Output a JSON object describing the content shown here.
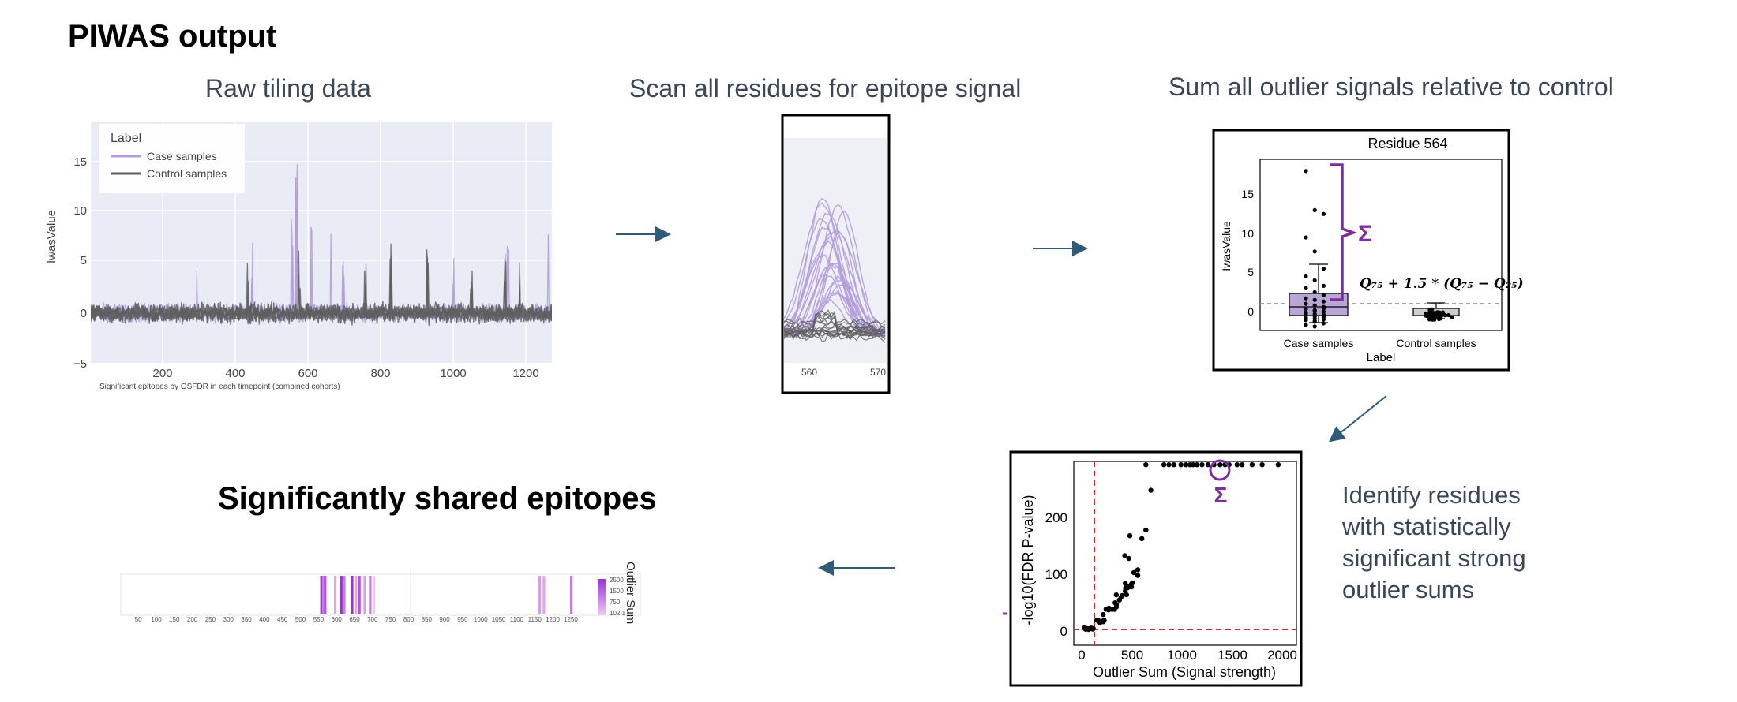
{
  "page": {
    "title": "PIWAS output",
    "panels": {
      "raw": "Raw tiling data",
      "scan": "Scan all residues for epitope signal",
      "sum": "Sum all outlier signals relative to control",
      "identify": [
        "Identify residues",
        "with statistically",
        "significant strong",
        "outlier sums"
      ],
      "shared": "Significantly shared epitopes"
    }
  },
  "raw_chart": {
    "ylabel": "IwasValue",
    "yticks": [
      "15",
      "10",
      "5",
      "0",
      "−5"
    ],
    "xticks": [
      "200",
      "400",
      "600",
      "800",
      "1000",
      "1200"
    ],
    "legend_title": "Label",
    "legend": [
      "Case samples",
      "Control samples"
    ],
    "caption": "Significant epitopes by OSFDR in each timepoint (combined cohorts)",
    "colors": {
      "case": "#b39ddb",
      "control": "#5f5f5f",
      "plot_bg": "#e9ecf4"
    }
  },
  "scan_chart": {
    "xticks": [
      "560",
      "570"
    ]
  },
  "box_chart": {
    "title": "Residue 564",
    "ylabel": "IwasValue",
    "xlabel": "Label",
    "yticks": [
      "15",
      "10",
      "5",
      "0"
    ],
    "categories": [
      "Case samples",
      "Control samples"
    ],
    "sigma": "Σ",
    "formula": "Q₇₅ + 1.5 * (Q₇₅ − Q₂₅)",
    "colors": {
      "brace": "#7b2f9e",
      "box": "#b7a6d6"
    }
  },
  "volcano_chart": {
    "ylabel": "-log10(FDR P-value)",
    "xlabel": "Outlier Sum (Signal strength)",
    "yticks": [
      "200",
      "100",
      "0"
    ],
    "xticks": [
      "0",
      "500",
      "1000",
      "1500",
      "2000"
    ],
    "sigma": "Σ"
  },
  "heat_chart": {
    "colorbar_label": "Outlier Sum",
    "colorbar_ticks": [
      "2500",
      "1500",
      "750",
      "102.1"
    ],
    "xticks": [
      "50",
      "100",
      "150",
      "200",
      "250",
      "300",
      "350",
      "400",
      "450",
      "500",
      "550",
      "600",
      "650",
      "700",
      "750",
      "800",
      "850",
      "900",
      "950",
      "1000",
      "1050",
      "1100",
      "1150",
      "1200",
      "1250"
    ],
    "colors": {
      "high": "#9b30d9",
      "low": "#f0c8f8"
    }
  },
  "colors": {
    "arrow": "#2f5a78",
    "threshold": "#c0302a"
  }
}
